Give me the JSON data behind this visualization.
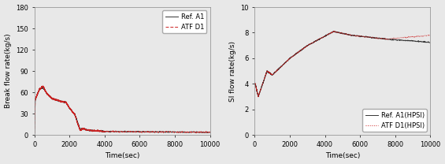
{
  "fig_width": 5.65,
  "fig_height": 2.08,
  "dpi": 100,
  "left_ylabel": "Break flow rate(kg/s)",
  "left_xlabel": "Time(sec)",
  "left_xlim": [
    0,
    10000
  ],
  "left_ylim": [
    0,
    180
  ],
  "left_yticks": [
    0,
    30,
    60,
    90,
    120,
    150,
    180
  ],
  "left_xticks": [
    0,
    2000,
    4000,
    6000,
    8000,
    10000
  ],
  "right_ylabel": "SI flow rate(kg/s)",
  "right_xlabel": "Time(sec)",
  "right_xlim": [
    0,
    10000
  ],
  "right_ylim": [
    0,
    10
  ],
  "right_yticks": [
    0,
    2,
    4,
    6,
    8,
    10
  ],
  "right_xticks": [
    0,
    2000,
    4000,
    6000,
    8000,
    10000
  ],
  "color_ref": "#333333",
  "color_atf": "#cc2222",
  "legend_left": [
    "Ref. A1",
    "ATF D1"
  ],
  "legend_right": [
    "Ref. A1(HPSI)",
    "ATF D1(HPSI)"
  ],
  "fontsize_label": 6.5,
  "fontsize_tick": 6,
  "fontsize_legend": 6,
  "bg_color": "#e8e8e8"
}
